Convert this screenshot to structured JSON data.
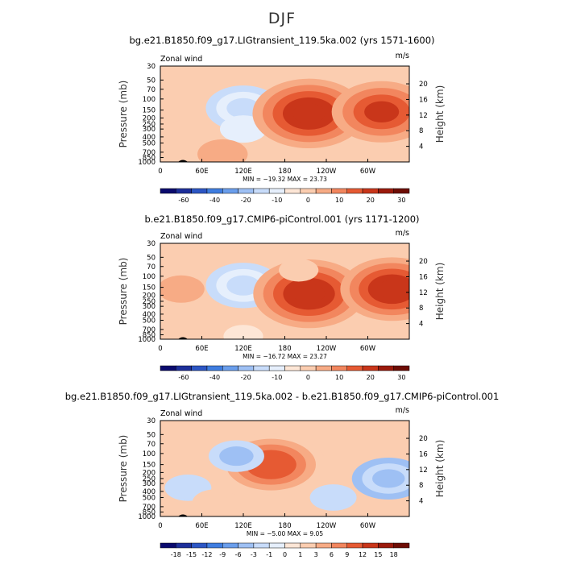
{
  "figure_title": "DJF",
  "chart_data": [
    {
      "type": "heatmap",
      "title": "bg.e21.B1850.f09_g17.LIGtransient_119.5ka.002 (yrs 1571-1600)",
      "left_label": "Zonal wind",
      "units": "m/s",
      "ylabel": "Pressure (mb)",
      "y2label": "Height (km)",
      "y_ticks": [
        "30",
        "50",
        "70",
        "100",
        "150",
        "200",
        "250",
        "300",
        "400",
        "500",
        "700",
        "850",
        "1000"
      ],
      "y2_ticks": [
        "20",
        "16",
        "12",
        "8",
        "4"
      ],
      "x_ticks": [
        "0",
        "60E",
        "120E",
        "180",
        "120W",
        "60W"
      ],
      "stats": "MIN = −19.32   MAX =  23.73",
      "colorbar_labels": [
        "-60",
        "-40",
        "-20",
        "-10",
        "0",
        "10",
        "20",
        "30"
      ],
      "colorbar_colors": [
        "#0a0a6e",
        "#1d2f9a",
        "#2c56c4",
        "#3f7de0",
        "#6a9eec",
        "#9ec0f4",
        "#c8dcfa",
        "#e6effc",
        "#fde6d6",
        "#fbcdb0",
        "#f7ab85",
        "#f2865e",
        "#e65a33",
        "#c9361a",
        "#9b1a0c",
        "#6e0d05"
      ],
      "field_min": -19.32,
      "field_max": 23.73,
      "shading_levels": [
        -60,
        -50,
        -40,
        -30,
        -20,
        -15,
        -10,
        -5,
        0,
        5,
        10,
        15,
        20,
        25,
        30
      ],
      "features": [
        {
          "lon": 120,
          "p": 140,
          "value": -13
        },
        {
          "lon": 120,
          "p": 300,
          "value": -5
        },
        {
          "lon": 215,
          "p": 170,
          "value": 23.7
        },
        {
          "lon": 320,
          "p": 160,
          "value": 20
        },
        {
          "lon": 10,
          "p": 150,
          "value": 4
        },
        {
          "lon": 90,
          "p": 750,
          "value": 6
        }
      ]
    },
    {
      "type": "heatmap",
      "title": "b.e21.B1850.f09_g17.CMIP6-piControl.001 (yrs 1171-1200)",
      "left_label": "Zonal wind",
      "units": "m/s",
      "ylabel": "Pressure (mb)",
      "y2label": "Height (km)",
      "y_ticks": [
        "30",
        "50",
        "70",
        "100",
        "150",
        "200",
        "250",
        "300",
        "400",
        "500",
        "700",
        "850",
        "1000"
      ],
      "y2_ticks": [
        "20",
        "16",
        "12",
        "8",
        "4"
      ],
      "x_ticks": [
        "0",
        "60E",
        "120E",
        "180",
        "120W",
        "60W"
      ],
      "stats": "MIN = −16.72   MAX =  23.27",
      "colorbar_labels": [
        "-60",
        "-40",
        "-20",
        "-10",
        "0",
        "10",
        "20",
        "30"
      ],
      "colorbar_colors": [
        "#0a0a6e",
        "#1d2f9a",
        "#2c56c4",
        "#3f7de0",
        "#6a9eec",
        "#9ec0f4",
        "#c8dcfa",
        "#e6effc",
        "#fde6d6",
        "#fbcdb0",
        "#f7ab85",
        "#f2865e",
        "#e65a33",
        "#c9361a",
        "#9b1a0c",
        "#6e0d05"
      ],
      "field_min": -16.72,
      "field_max": 23.27,
      "shading_levels": [
        -60,
        -50,
        -40,
        -30,
        -20,
        -15,
        -10,
        -5,
        0,
        5,
        10,
        15,
        20,
        25,
        30
      ],
      "features": [
        {
          "lon": 120,
          "p": 140,
          "value": -13
        },
        {
          "lon": 215,
          "p": 190,
          "value": 23.3
        },
        {
          "lon": 335,
          "p": 160,
          "value": 21
        },
        {
          "lon": 30,
          "p": 160,
          "value": 5
        },
        {
          "lon": 200,
          "p": 80,
          "value": 3
        },
        {
          "lon": 120,
          "p": 900,
          "value": -3
        }
      ]
    },
    {
      "type": "heatmap",
      "title": "bg.e21.B1850.f09_g17.LIGtransient_119.5ka.002 - b.e21.B1850.f09_g17.CMIP6-piControl.001",
      "left_label": "Zonal wind",
      "units": "m/s",
      "ylabel": "Pressure (mb)",
      "y2label": "Height (km)",
      "y_ticks": [
        "30",
        "50",
        "70",
        "100",
        "150",
        "200",
        "250",
        "300",
        "400",
        "500",
        "700",
        "850",
        "1000"
      ],
      "y2_ticks": [
        "20",
        "16",
        "12",
        "8",
        "4"
      ],
      "x_ticks": [
        "0",
        "60E",
        "120E",
        "180",
        "120W",
        "60W"
      ],
      "stats": "MIN =  −5.00   MAX =    9.05",
      "colorbar_labels": [
        "-18",
        "-15",
        "-12",
        "-9",
        "-6",
        "-3",
        "-1",
        "0",
        "1",
        "3",
        "6",
        "9",
        "12",
        "15",
        "18"
      ],
      "colorbar_colors": [
        "#0a0a6e",
        "#1d2f9a",
        "#2c56c4",
        "#3f7de0",
        "#6a9eec",
        "#9ec0f4",
        "#c8dcfa",
        "#e6effc",
        "#fde6d6",
        "#fbcdb0",
        "#f7ab85",
        "#f2865e",
        "#e65a33",
        "#c9361a",
        "#9b1a0c",
        "#6e0d05"
      ],
      "field_min": -5.0,
      "field_max": 9.05,
      "shading_levels": [
        -18,
        -15,
        -12,
        -9,
        -6,
        -3,
        -1,
        0,
        1,
        3,
        6,
        9,
        12,
        15,
        18
      ],
      "features": [
        {
          "lon": 160,
          "p": 150,
          "value": 9.05
        },
        {
          "lon": 330,
          "p": 250,
          "value": -5
        },
        {
          "lon": 110,
          "p": 110,
          "value": -3
        },
        {
          "lon": 40,
          "p": 350,
          "value": -2
        },
        {
          "lon": 80,
          "p": 600,
          "value": 2
        },
        {
          "lon": 250,
          "p": 500,
          "value": -2
        }
      ]
    }
  ]
}
